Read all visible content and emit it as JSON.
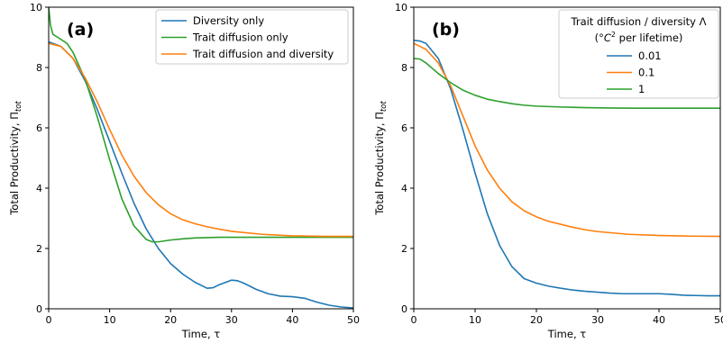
{
  "chart_data": [
    {
      "type": "line",
      "panel_label": "(a)",
      "xlabel": "Time, τ",
      "ylabel": "Total Productivity, Π",
      "ylabel_sub": "tot",
      "xlim": [
        0,
        50
      ],
      "ylim": [
        0,
        10
      ],
      "xticks": [
        0,
        10,
        20,
        30,
        40,
        50
      ],
      "yticks": [
        0,
        2,
        4,
        6,
        8,
        10
      ],
      "grid": false,
      "legend": {
        "position": "top-right",
        "title": ""
      },
      "series": [
        {
          "name": "Diversity only",
          "color": "#1f77b4",
          "x": [
            0,
            2,
            4,
            6,
            8,
            10,
            12,
            14,
            16,
            18,
            20,
            22,
            24,
            26,
            27,
            28,
            30,
            31,
            32,
            34,
            36,
            38,
            40,
            42,
            44,
            46,
            48,
            50
          ],
          "y": [
            8.85,
            8.7,
            8.3,
            7.55,
            6.6,
            5.55,
            4.5,
            3.5,
            2.65,
            2.0,
            1.5,
            1.15,
            0.88,
            0.68,
            0.7,
            0.8,
            0.95,
            0.93,
            0.85,
            0.65,
            0.5,
            0.42,
            0.4,
            0.35,
            0.22,
            0.12,
            0.06,
            0.03
          ]
        },
        {
          "name": "Trait diffusion only",
          "color": "#2ca02c",
          "x": [
            0,
            0.3,
            0.7,
            1.5,
            3,
            4,
            6,
            8,
            10,
            12,
            14,
            16,
            17,
            18,
            19,
            20,
            22,
            24,
            26,
            28,
            30,
            35,
            40,
            45,
            50
          ],
          "y": [
            10,
            9.4,
            9.1,
            9.0,
            8.8,
            8.5,
            7.6,
            6.35,
            4.95,
            3.65,
            2.75,
            2.3,
            2.22,
            2.22,
            2.25,
            2.28,
            2.32,
            2.35,
            2.36,
            2.37,
            2.37,
            2.37,
            2.37,
            2.37,
            2.37
          ]
        },
        {
          "name": "Trait diffusion and diversity",
          "color": "#ff7f0e",
          "x": [
            0,
            2,
            4,
            6,
            8,
            10,
            12,
            14,
            16,
            18,
            20,
            22,
            24,
            26,
            28,
            30,
            35,
            40,
            45,
            50
          ],
          "y": [
            8.8,
            8.7,
            8.3,
            7.65,
            6.85,
            5.95,
            5.1,
            4.4,
            3.85,
            3.45,
            3.15,
            2.95,
            2.82,
            2.72,
            2.64,
            2.57,
            2.47,
            2.42,
            2.4,
            2.4
          ]
        }
      ]
    },
    {
      "type": "line",
      "panel_label": "(b)",
      "xlabel": "Time, τ",
      "ylabel": "Total Productivity, Π",
      "ylabel_sub": "tot",
      "xlim": [
        0,
        50
      ],
      "ylim": [
        0,
        10
      ],
      "xticks": [
        0,
        10,
        20,
        30,
        40,
        50
      ],
      "yticks": [
        0,
        2,
        4,
        6,
        8,
        10
      ],
      "grid": false,
      "legend": {
        "position": "top-right",
        "title": "Trait diffusion / diversity Λ",
        "subtitle_pre": "(°",
        "subtitle_base": "C",
        "subtitle_sup": "2",
        "subtitle_post": " per lifetime)"
      },
      "series": [
        {
          "name": "0.01",
          "color": "#1f77b4",
          "x": [
            0,
            1,
            2,
            4,
            6,
            8,
            10,
            12,
            14,
            16,
            18,
            20,
            22,
            24,
            26,
            28,
            30,
            32,
            34,
            36,
            38,
            40,
            42,
            44,
            46,
            48,
            50
          ],
          "y": [
            8.9,
            8.88,
            8.8,
            8.3,
            7.3,
            5.95,
            4.5,
            3.15,
            2.1,
            1.4,
            1.0,
            0.85,
            0.75,
            0.68,
            0.62,
            0.58,
            0.55,
            0.52,
            0.5,
            0.5,
            0.5,
            0.5,
            0.48,
            0.45,
            0.44,
            0.43,
            0.43
          ]
        },
        {
          "name": "0.1",
          "color": "#ff7f0e",
          "x": [
            0,
            1,
            2,
            4,
            6,
            8,
            10,
            12,
            14,
            16,
            18,
            20,
            22,
            24,
            26,
            28,
            30,
            35,
            40,
            45,
            50
          ],
          "y": [
            8.8,
            8.7,
            8.6,
            8.15,
            7.4,
            6.4,
            5.4,
            4.6,
            4.0,
            3.55,
            3.25,
            3.05,
            2.9,
            2.8,
            2.7,
            2.62,
            2.56,
            2.47,
            2.43,
            2.41,
            2.4
          ]
        },
        {
          "name": "1",
          "color": "#2ca02c",
          "x": [
            0,
            1,
            2,
            4,
            6,
            8,
            10,
            12,
            14,
            16,
            18,
            20,
            24,
            28,
            32,
            36,
            40,
            45,
            50
          ],
          "y": [
            8.3,
            8.28,
            8.15,
            7.8,
            7.5,
            7.25,
            7.08,
            6.95,
            6.87,
            6.8,
            6.75,
            6.72,
            6.69,
            6.67,
            6.66,
            6.65,
            6.65,
            6.65,
            6.65
          ]
        }
      ]
    }
  ]
}
